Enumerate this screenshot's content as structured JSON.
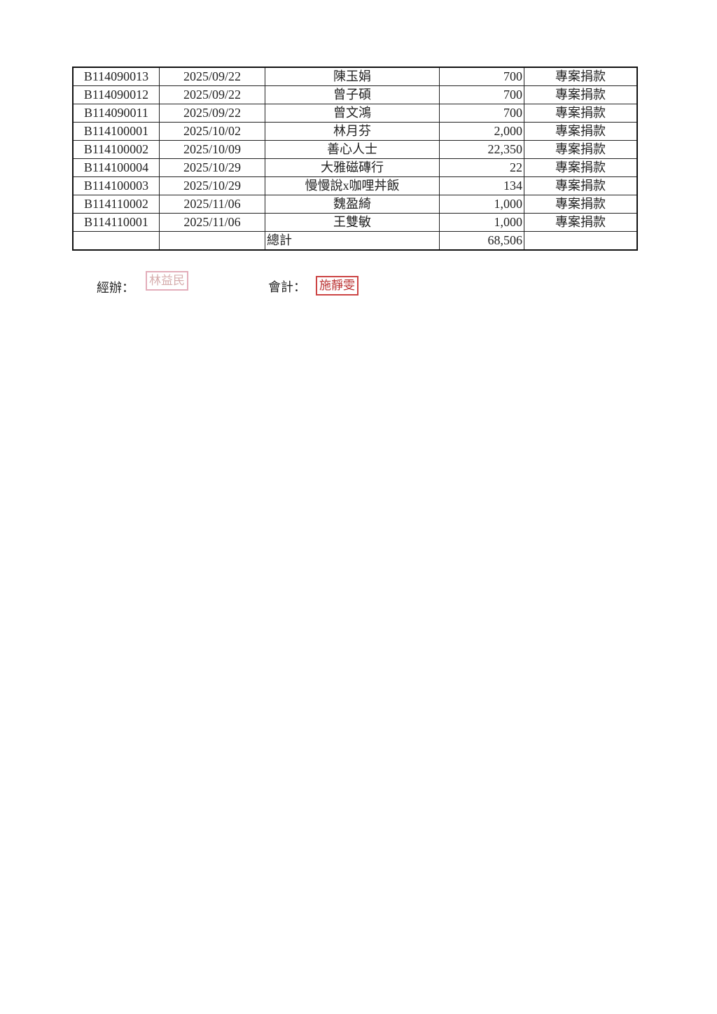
{
  "table": {
    "rows": [
      [
        "B114090013",
        "2025/09/22",
        "陳玉娟",
        "700",
        "專案捐款"
      ],
      [
        "B114090012",
        "2025/09/22",
        "曾子碩",
        "700",
        "專案捐款"
      ],
      [
        "B114090011",
        "2025/09/22",
        "曾文鴻",
        "700",
        "專案捐款"
      ],
      [
        "B114100001",
        "2025/10/02",
        "林月芬",
        "2,000",
        "專案捐款"
      ],
      [
        "B114100002",
        "2025/10/09",
        "善心人士",
        "22,350",
        "專案捐款"
      ],
      [
        "B114100004",
        "2025/10/29",
        "大雅磁磚行",
        "22",
        "專案捐款"
      ],
      [
        "B114100003",
        "2025/10/29",
        "慢慢說x咖哩丼飯",
        "134",
        "專案捐款"
      ],
      [
        "B114110002",
        "2025/11/06",
        "魏盈綺",
        "1,000",
        "專案捐款"
      ],
      [
        "B114110001",
        "2025/11/06",
        "王雙敏",
        "1,000",
        "專案捐款"
      ]
    ],
    "total_label": "總計",
    "total_value": "68,506"
  },
  "signatures": {
    "handler_label": "經辦：",
    "handler_stamp": "林益民",
    "accountant_label": "會計：",
    "accountant_stamp": "施靜雯"
  }
}
